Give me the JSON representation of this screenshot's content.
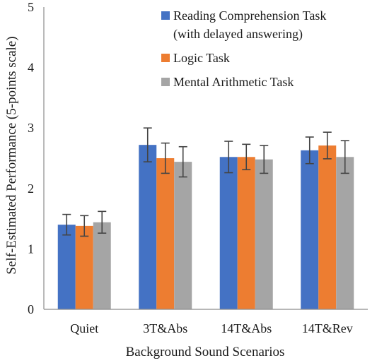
{
  "chart_data": {
    "type": "bar",
    "title": "",
    "xlabel": "Background Sound Scenarios",
    "ylabel": "Self-Estimated Performance (5-points scale)",
    "ylim": [
      0,
      5
    ],
    "yticks": [
      "0",
      "1",
      "2",
      "3",
      "4",
      "5"
    ],
    "grid": false,
    "legend_position": "top-right",
    "categories": [
      "Quiet",
      "3T&Abs",
      "14T&Abs",
      "14T&Rev"
    ],
    "series": [
      {
        "name": "Reading Comprehension Task",
        "name_line2": "(with delayed answering)",
        "color": "#4472c4",
        "values": [
          1.4,
          2.72,
          2.52,
          2.63
        ],
        "errors": [
          0.17,
          0.28,
          0.26,
          0.22
        ]
      },
      {
        "name": "Logic Task",
        "color": "#ed7d31",
        "values": [
          1.38,
          2.5,
          2.52,
          2.71
        ],
        "errors": [
          0.17,
          0.25,
          0.21,
          0.22
        ]
      },
      {
        "name": "Mental Arithmetic Task",
        "color": "#a5a5a5",
        "values": [
          1.44,
          2.44,
          2.48,
          2.52
        ],
        "errors": [
          0.18,
          0.25,
          0.23,
          0.27
        ]
      }
    ]
  }
}
